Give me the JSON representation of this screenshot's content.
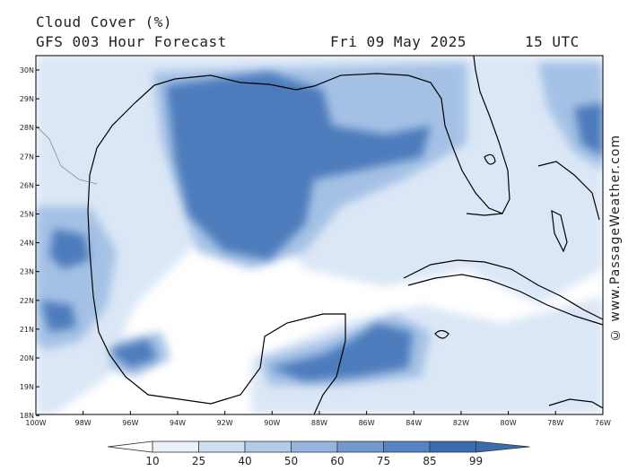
{
  "header": {
    "title": "Cloud Cover (%)",
    "subtitle": "GFS 003 Hour Forecast",
    "date": "Fri 09 May 2025",
    "time": "15 UTC"
  },
  "credit": "© www.PassageWeather.com",
  "axes": {
    "lat_labels": [
      "30N",
      "29N",
      "28N",
      "27N",
      "26N",
      "25N",
      "24N",
      "23N",
      "22N",
      "21N",
      "20N",
      "19N",
      "18N"
    ],
    "lon_labels": [
      "100W",
      "98W",
      "96W",
      "94W",
      "92W",
      "90W",
      "88W",
      "86W",
      "84W",
      "82W",
      "80W",
      "78W",
      "76W"
    ]
  },
  "colorbar": {
    "levels": [
      "10",
      "25",
      "40",
      "50",
      "60",
      "75",
      "85",
      "99"
    ],
    "colors": [
      "#ffffff",
      "#eaf1fb",
      "#cfdff2",
      "#b3cbea",
      "#95b5df",
      "#739ad0",
      "#5584c4",
      "#3c6cb0"
    ]
  },
  "colors": {
    "land_light": "#eaf1fb",
    "cloud_mid": "#95b5df",
    "cloud_heavy": "#4a78b9",
    "coastline": "#000000"
  }
}
